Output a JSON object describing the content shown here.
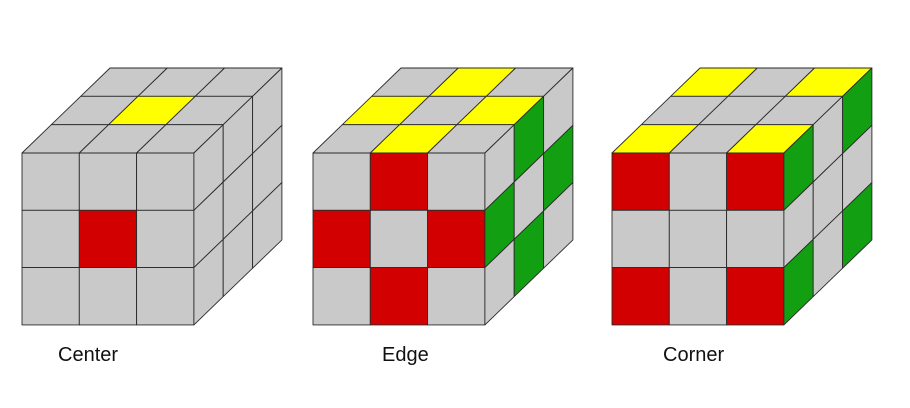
{
  "colors": {
    "gray": "#c9c9c9",
    "yellow": "#ffff00",
    "red": "#d20000",
    "green": "#12a012",
    "edge": "#2a2a2a",
    "label": "#111111"
  },
  "cubes": [
    {
      "label": "Center",
      "front": [
        [
          "g",
          "g",
          "g"
        ],
        [
          "g",
          "r",
          "g"
        ],
        [
          "g",
          "g",
          "g"
        ]
      ],
      "top": [
        [
          "g",
          "g",
          "g"
        ],
        [
          "g",
          "y",
          "g"
        ],
        [
          "g",
          "g",
          "g"
        ]
      ],
      "side": [
        [
          "g",
          "g",
          "g"
        ],
        [
          "g",
          "y-",
          "g"
        ],
        [
          "g",
          "g",
          "g"
        ]
      ]
    },
    {
      "label": "Edge",
      "front": [
        [
          "g",
          "r",
          "g"
        ],
        [
          "r",
          "g",
          "r"
        ],
        [
          "g",
          "r",
          "g"
        ]
      ],
      "top": [
        [
          "g",
          "y",
          "g"
        ],
        [
          "y",
          "g",
          "y"
        ],
        [
          "g",
          "y",
          "g"
        ]
      ],
      "side": [
        [
          "g",
          "gr",
          "g"
        ],
        [
          "gr",
          "g",
          "gr"
        ],
        [
          "g",
          "gr",
          "g"
        ]
      ]
    },
    {
      "label": "Corner",
      "front": [
        [
          "r",
          "g",
          "r"
        ],
        [
          "g",
          "g",
          "g"
        ],
        [
          "r",
          "g",
          "r"
        ]
      ],
      "top": [
        [
          "y",
          "g",
          "y"
        ],
        [
          "g",
          "g",
          "g"
        ],
        [
          "y",
          "g",
          "y"
        ]
      ],
      "side": [
        [
          "gr",
          "g",
          "gr"
        ],
        [
          "g",
          "g",
          "g"
        ],
        [
          "gr",
          "g",
          "gr"
        ]
      ]
    }
  ]
}
